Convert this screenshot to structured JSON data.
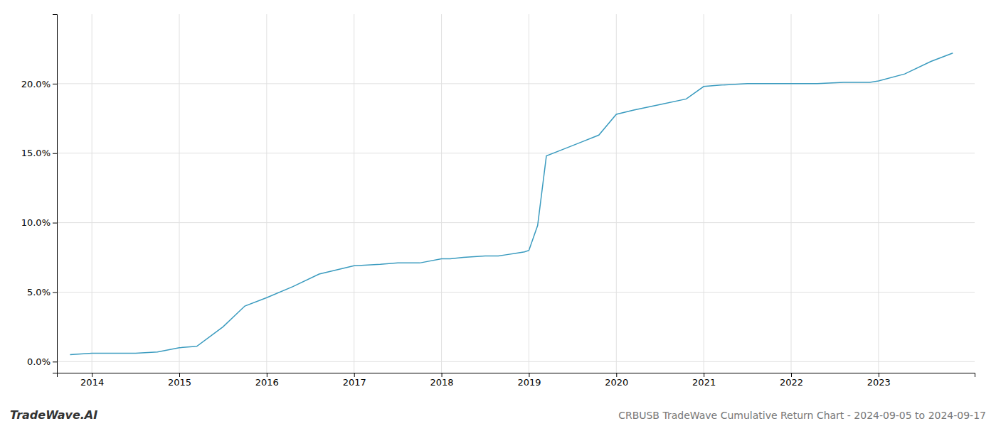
{
  "chart_data": {
    "type": "line",
    "title": "CRBUSB TradeWave Cumulative Return Chart - 2024-09-05 to 2024-09-17",
    "annotations": [
      "TradeWave.AI"
    ],
    "color": "#3a9bbf",
    "x": [
      2013.75,
      2014.0,
      2014.25,
      2014.5,
      2014.75,
      2015.0,
      2015.2,
      2015.5,
      2015.75,
      2016.0,
      2016.3,
      2016.6,
      2017.0,
      2017.3,
      2017.5,
      2017.75,
      2018.0,
      2018.1,
      2018.25,
      2018.5,
      2018.65,
      2018.75,
      2018.85,
      2018.95,
      2019.0,
      2019.1,
      2019.2,
      2019.4,
      2019.6,
      2019.8,
      2020.0,
      2020.2,
      2020.5,
      2020.8,
      2021.0,
      2021.2,
      2021.5,
      2021.7,
      2021.9,
      2022.0,
      2022.3,
      2022.6,
      2022.9,
      2023.0,
      2023.3,
      2023.6,
      2023.85
    ],
    "values": [
      0.005,
      0.006,
      0.006,
      0.006,
      0.007,
      0.01,
      0.011,
      0.025,
      0.04,
      0.046,
      0.054,
      0.063,
      0.069,
      0.07,
      0.071,
      0.071,
      0.074,
      0.074,
      0.075,
      0.076,
      0.076,
      0.077,
      0.078,
      0.079,
      0.08,
      0.098,
      0.148,
      0.153,
      0.158,
      0.163,
      0.178,
      0.181,
      0.185,
      0.189,
      0.198,
      0.199,
      0.2,
      0.2,
      0.2,
      0.2,
      0.2,
      0.201,
      0.201,
      0.202,
      0.207,
      0.216,
      0.222
    ],
    "xlim": [
      2013.6,
      2024.1
    ],
    "ylim": [
      -0.008,
      0.25
    ],
    "xticks": [
      2014,
      2015,
      2016,
      2017,
      2018,
      2019,
      2020,
      2021,
      2022,
      2023
    ],
    "yticks": [
      {
        "value": 0.0,
        "label": "0.0%"
      },
      {
        "value": 0.05,
        "label": "5.0%"
      },
      {
        "value": 0.1,
        "label": "10.0%"
      },
      {
        "value": 0.15,
        "label": "15.0%"
      },
      {
        "value": 0.2,
        "label": "20.0%"
      }
    ],
    "grid": true
  }
}
